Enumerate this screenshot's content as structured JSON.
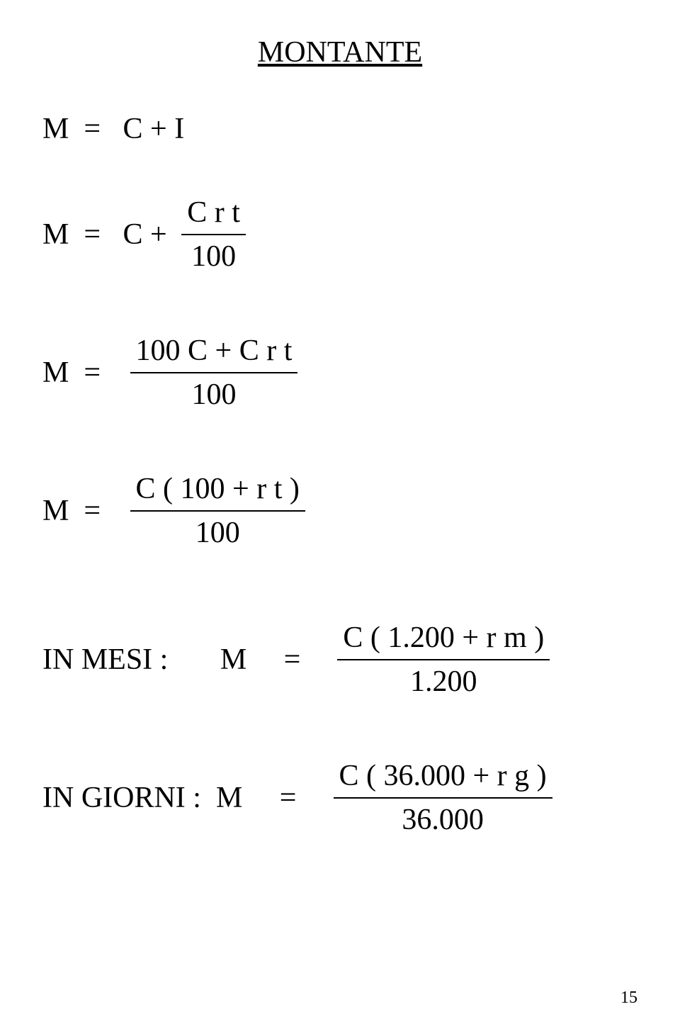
{
  "title": "MONTANTE",
  "formula1": {
    "lhs": "M  =   C + I"
  },
  "formula2": {
    "lhs": "M  =   C + ",
    "num": "C r  t",
    "den": "100"
  },
  "formula3": {
    "lhs": "M  =   ",
    "num": "100 C + C  r  t",
    "den": "100"
  },
  "formula4": {
    "lhs": "M  =   ",
    "num": "C ( 100 + r t )",
    "den": "100"
  },
  "formula5": {
    "lhs": "IN MESI :       M     =    ",
    "num": "C ( 1.200 + r m )",
    "den": "1.200"
  },
  "formula6": {
    "lhs": "IN GIORNI :  M     =    ",
    "num": "C ( 36.000 + r g )",
    "den": "36.000"
  },
  "pageNumber": "15",
  "colors": {
    "background": "#ffffff",
    "text": "#000000",
    "underline": "#000000"
  },
  "typography": {
    "fontFamily": "Times New Roman",
    "titleFontSize": 42,
    "bodyFontSize": 42,
    "pageNumFontSize": 24
  }
}
